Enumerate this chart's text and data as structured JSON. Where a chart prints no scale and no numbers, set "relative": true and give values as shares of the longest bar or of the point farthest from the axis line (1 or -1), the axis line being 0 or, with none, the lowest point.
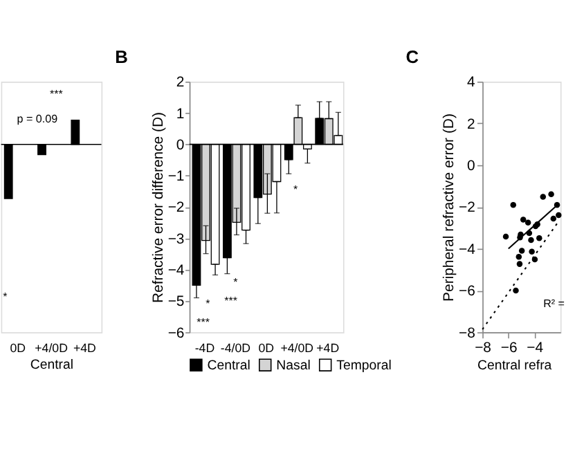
{
  "chart_data": [
    {
      "type": "bar",
      "relative": true,
      "xlabel": "Central",
      "categories": [
        "0D",
        "+4/0D",
        "+4D"
      ],
      "color": "#000000",
      "values": [
        -1,
        -0.19,
        0.45
      ],
      "annotations": [
        "***",
        "p = 0.09",
        "*"
      ]
    },
    {
      "type": "bar",
      "title": "B",
      "ylabel": "Refractive error difference (D)",
      "categories": [
        "-4D",
        "-4/0D",
        "0D",
        "+4/0D",
        "+4D"
      ],
      "ylim": [
        -6,
        2
      ],
      "yticks": [
        -6,
        -5,
        -4,
        -3,
        -2,
        -1,
        0,
        1,
        2
      ],
      "series": [
        {
          "name": "Central",
          "color": "#000000",
          "values": [
            -4.5,
            -3.62,
            -1.7,
            -0.49,
            0.83
          ],
          "errors": [
            [
              -4.9,
              -4.5
            ],
            [
              -4.13,
              -3.62
            ],
            [
              -2.53,
              -1.7
            ],
            [
              -0.94,
              -0.49
            ],
            [
              0.83,
              1.36
            ]
          ]
        },
        {
          "name": "Nasal",
          "color": "#d4d4d4",
          "values": [
            -3.07,
            -2.49,
            -1.59,
            0.85,
            0.82
          ],
          "errors": [
            [
              -3.49,
              -2.6
            ],
            [
              -2.89,
              -2.04
            ],
            [
              -2.2,
              -0.94
            ],
            [
              0.85,
              1.25
            ],
            [
              0.82,
              1.36
            ]
          ]
        },
        {
          "name": "Temporal",
          "color": "#ffffff",
          "values": [
            -3.83,
            -2.74,
            -1.19,
            -0.15,
            0.28
          ],
          "errors": [
            [
              -4.17,
              -3.83
            ],
            [
              -3.17,
              -2.74
            ],
            [
              -2.19,
              -1.19
            ],
            [
              -0.6,
              -0.15
            ],
            [
              0.28,
              1.02
            ]
          ]
        }
      ],
      "annotations": [
        "***",
        "*",
        "***",
        "*",
        "*"
      ],
      "legend": "bottom"
    },
    {
      "type": "scatter",
      "title": "C",
      "ylabel": "Peripheral refractive error (D)",
      "xlabel": "Central refra",
      "xlim": [
        -8,
        -2
      ],
      "xticks": [
        -8,
        -6,
        -4
      ],
      "ylim": [
        -8,
        4
      ],
      "yticks": [
        -8,
        -6,
        -4,
        -2,
        0,
        2,
        4
      ],
      "series": [
        {
          "type": "scatter",
          "color": "#000000",
          "x": [
            -6.2,
            -5.63,
            -4.86,
            -5.06,
            -5.11,
            -4.97,
            -5.2,
            -5.14,
            -4.49,
            -4.4,
            -4.26,
            -4.2,
            -3.97,
            -3.91,
            -3.77,
            -3.63,
            -3.34,
            -2.71,
            -2.54,
            -2.26,
            -2.14,
            -5.43
          ],
          "values": [
            -3.42,
            -1.9,
            -2.61,
            -3.32,
            -3.46,
            -4.1,
            -4.39,
            -4.73,
            -2.75,
            -3.25,
            -3.58,
            -4.14,
            -4.51,
            -2.92,
            -2.83,
            -3.49,
            -1.51,
            -1.39,
            -2.56,
            -1.9,
            -2.39,
            -6.0
          ]
        },
        {
          "type": "line",
          "color": "#000000",
          "line_style": "solid",
          "x": [
            -6,
            -2.14
          ],
          "values": [
            -4.0,
            -1.85
          ]
        },
        {
          "type": "line",
          "color": "#000000",
          "line_style": "dotted",
          "x": [
            -8,
            -2.14
          ],
          "values": [
            -7.86,
            -2.69
          ]
        }
      ],
      "annotations": [
        "R² ="
      ]
    }
  ]
}
